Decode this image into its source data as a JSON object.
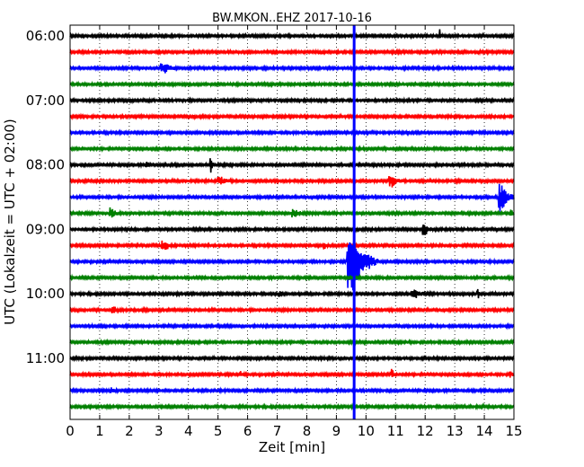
{
  "chart_data": {
    "type": "line",
    "title": "BW.MKON..EHZ 2017-10-16",
    "xlabel": "Zeit  [min]",
    "ylabel": "UTC (Lokalzeit = UTC + 02:00)",
    "xlim": [
      0,
      15
    ],
    "x_ticks": [
      "0",
      "1",
      "2",
      "3",
      "4",
      "5",
      "6",
      "7",
      "8",
      "9",
      "10",
      "11",
      "12",
      "13",
      "14",
      "15"
    ],
    "y_ticks": [
      "06:00",
      "07:00",
      "08:00",
      "09:00",
      "10:00",
      "11:00"
    ],
    "grid": true,
    "trace_interval_min": 15,
    "trace_colors": [
      "#000000",
      "#ff0000",
      "#0000ff",
      "#008000"
    ],
    "traces": [
      {
        "start": "06:00",
        "events": [
          {
            "x": 12.5,
            "amp": 1.0,
            "dur": 0.08
          }
        ]
      },
      {
        "start": "06:15",
        "events": []
      },
      {
        "start": "06:30",
        "events": [
          {
            "x": 3.2,
            "amp": 0.7,
            "dur": 0.5
          }
        ]
      },
      {
        "start": "06:45",
        "events": []
      },
      {
        "start": "07:00",
        "events": []
      },
      {
        "start": "07:15",
        "events": []
      },
      {
        "start": "07:30",
        "events": []
      },
      {
        "start": "07:45",
        "events": []
      },
      {
        "start": "08:00",
        "events": [
          {
            "x": 2.6,
            "amp": 0.5,
            "dur": 0.15
          },
          {
            "x": 4.75,
            "amp": 1.4,
            "dur": 0.1
          }
        ]
      },
      {
        "start": "08:15",
        "events": [
          {
            "x": 5.1,
            "amp": 0.6,
            "dur": 0.4
          },
          {
            "x": 10.9,
            "amp": 0.8,
            "dur": 0.45
          }
        ]
      },
      {
        "start": "08:30",
        "events": [
          {
            "x": 14.6,
            "amp": 2.2,
            "dur": 0.45
          }
        ]
      },
      {
        "start": "08:45",
        "events": [
          {
            "x": 1.4,
            "amp": 0.8,
            "dur": 0.3
          },
          {
            "x": 7.6,
            "amp": 0.6,
            "dur": 0.4
          },
          {
            "x": 14.9,
            "amp": 0.8,
            "dur": 0.1
          }
        ]
      },
      {
        "start": "09:00",
        "events": [
          {
            "x": 12.0,
            "amp": 0.8,
            "dur": 0.3
          }
        ]
      },
      {
        "start": "09:15",
        "events": [
          {
            "x": 3.2,
            "amp": 0.7,
            "dur": 0.4
          },
          {
            "x": 8.6,
            "amp": 0.6,
            "dur": 0.1
          }
        ]
      },
      {
        "start": "09:30",
        "events": [
          {
            "x": 9.6,
            "amp": 4.5,
            "dur": 0.8
          }
        ]
      },
      {
        "start": "09:45",
        "events": []
      },
      {
        "start": "10:00",
        "events": [
          {
            "x": 7.1,
            "amp": 0.4,
            "dur": 0.1
          },
          {
            "x": 11.7,
            "amp": 0.5,
            "dur": 0.5
          },
          {
            "x": 13.8,
            "amp": 0.9,
            "dur": 0.08
          }
        ]
      },
      {
        "start": "10:15",
        "events": [
          {
            "x": 1.5,
            "amp": 0.4,
            "dur": 0.3
          }
        ]
      },
      {
        "start": "10:30",
        "events": []
      },
      {
        "start": "10:45",
        "events": []
      },
      {
        "start": "11:00",
        "events": []
      },
      {
        "start": "11:15",
        "events": [
          {
            "x": 5.8,
            "amp": 0.4,
            "dur": 0.15
          },
          {
            "x": 10.9,
            "amp": 0.9,
            "dur": 0.15
          },
          {
            "x": 14.9,
            "amp": 0.4,
            "dur": 0.2
          }
        ]
      },
      {
        "start": "11:30",
        "events": [
          {
            "x": 1.4,
            "amp": 0.4,
            "dur": 0.2
          }
        ]
      },
      {
        "start": "11:45",
        "events": []
      }
    ],
    "marker": {
      "x": 9.6,
      "color": "#0000ff"
    }
  }
}
